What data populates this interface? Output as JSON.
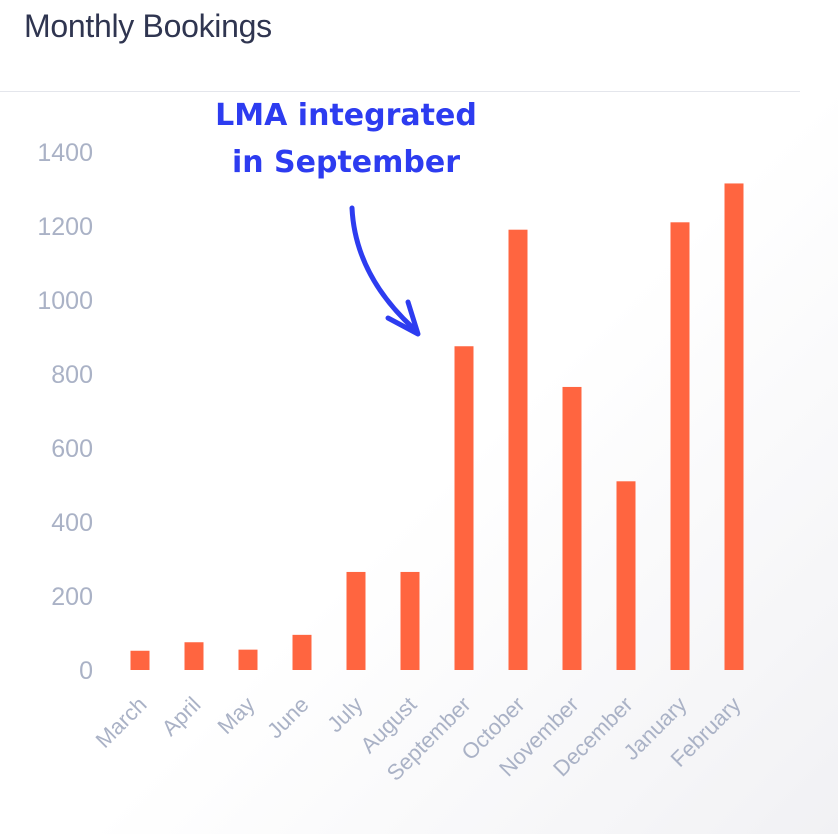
{
  "chart_data": {
    "type": "bar",
    "title": "Monthly Bookings",
    "annotation": [
      "LMA integrated",
      "in September"
    ],
    "categories": [
      "March",
      "April",
      "May",
      "June",
      "July",
      "August",
      "September",
      "October",
      "November",
      "December",
      "January",
      "February"
    ],
    "values": [
      52,
      75,
      55,
      95,
      265,
      265,
      875,
      1190,
      765,
      510,
      1210,
      1315
    ],
    "ylim": [
      0,
      1400
    ],
    "yticks": [
      0,
      200,
      400,
      600,
      800,
      1000,
      1200,
      1400
    ],
    "bar_color": "#ff6540",
    "annotation_color": "#2d3cf0",
    "grid": false,
    "legend": "none"
  }
}
